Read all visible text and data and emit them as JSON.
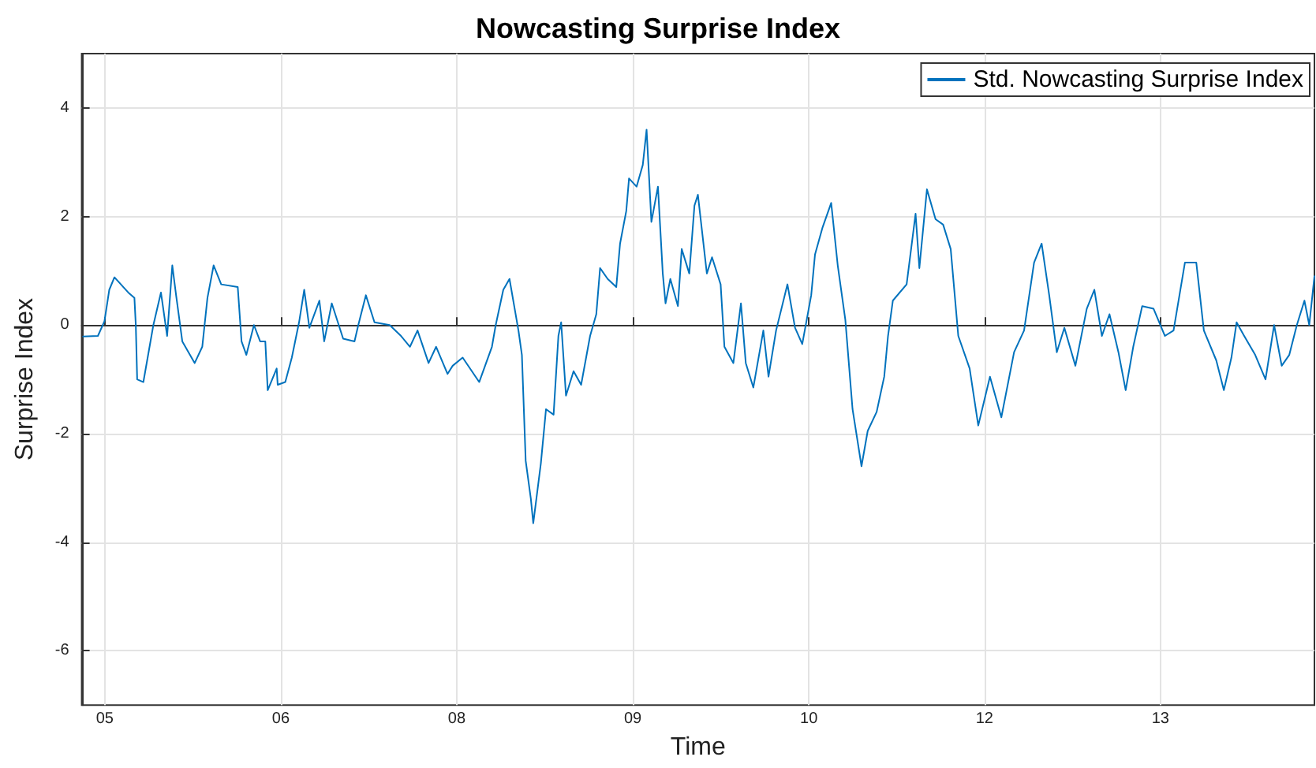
{
  "chart_data": {
    "type": "line",
    "title": "Nowcasting Surprise Index",
    "xlabel": "Time",
    "ylabel": "Surprise Index",
    "xlim": [
      "2005-01-12",
      "2014-10-31"
    ],
    "ylim": [
      -7,
      5
    ],
    "xticks": [
      {
        "value": "2005-03-20",
        "label": "05"
      },
      {
        "value": "2006-08-13",
        "label": "06"
      },
      {
        "value": "2008-01-06",
        "label": "08"
      },
      {
        "value": "2009-05-31",
        "label": "09"
      },
      {
        "value": "2010-10-24",
        "label": "10"
      },
      {
        "value": "2012-03-17",
        "label": "12"
      },
      {
        "value": "2013-08-10",
        "label": "13"
      }
    ],
    "yticks": [
      -6,
      -4,
      -2,
      0,
      2,
      4
    ],
    "grid": true,
    "legend": "top right",
    "line_style": "solid",
    "series": [
      {
        "name": "Std. Nowcasting Surprise Index",
        "color": "#0072bd",
        "x": [
          "2005-01-16",
          "2005-02-28",
          "2005-03-19",
          "2005-04-02",
          "2005-04-17",
          "2005-05-27",
          "2005-06-14",
          "2005-06-18",
          "2005-06-22",
          "2005-07-10",
          "2005-08-08",
          "2005-08-30",
          "2005-09-17",
          "2005-10-02",
          "2005-10-13",
          "2005-10-31",
          "2005-12-06",
          "2005-12-28",
          "2006-01-12",
          "2006-01-30",
          "2006-02-21",
          "2006-04-10",
          "2006-04-21",
          "2006-05-05",
          "2006-05-27",
          "2006-06-14",
          "2006-06-29",
          "2006-07-06",
          "2006-08-01",
          "2006-08-04",
          "2006-08-26",
          "2006-09-14",
          "2006-10-05",
          "2006-10-20",
          "2006-11-04",
          "2006-12-03",
          "2006-12-17",
          "2007-01-08",
          "2007-02-10",
          "2007-03-15",
          "2007-03-26",
          "2007-04-17",
          "2007-05-12",
          "2007-06-25",
          "2007-07-28",
          "2007-08-23",
          "2007-09-14",
          "2007-10-16",
          "2007-11-07",
          "2007-12-10",
          "2007-12-25",
          "2008-01-23",
          "2008-03-11",
          "2008-04-17",
          "2008-04-28",
          "2008-05-20",
          "2008-06-07",
          "2008-07-03",
          "2008-07-13",
          "2008-07-24",
          "2008-08-08",
          "2008-08-15",
          "2008-09-06",
          "2008-09-21",
          "2008-10-13",
          "2008-10-27",
          "2008-11-04",
          "2008-11-18",
          "2008-12-10",
          "2009-01-01",
          "2009-01-27",
          "2009-02-14",
          "2009-02-25",
          "2009-03-19",
          "2009-04-13",
          "2009-04-24",
          "2009-05-12",
          "2009-05-20",
          "2009-06-11",
          "2009-06-29",
          "2009-07-10",
          "2009-07-24",
          "2009-08-12",
          "2009-08-26",
          "2009-09-03",
          "2009-09-17",
          "2009-10-09",
          "2009-10-20",
          "2009-11-11",
          "2009-11-26",
          "2009-12-06",
          "2010-01-01",
          "2010-01-16",
          "2010-02-10",
          "2010-02-21",
          "2010-03-19",
          "2010-04-10",
          "2010-04-24",
          "2010-05-16",
          "2010-06-14",
          "2010-06-29",
          "2010-07-21",
          "2010-08-23",
          "2010-09-14",
          "2010-10-05",
          "2010-10-31",
          "2010-11-11",
          "2010-12-03",
          "2010-12-28",
          "2011-01-16",
          "2011-02-07",
          "2011-02-28",
          "2011-03-26",
          "2011-04-13",
          "2011-05-09",
          "2011-05-31",
          "2011-06-11",
          "2011-06-25",
          "2011-08-04",
          "2011-08-30",
          "2011-09-10",
          "2011-10-02",
          "2011-10-27",
          "2011-11-18",
          "2011-12-10",
          "2012-01-01",
          "2012-02-03",
          "2012-02-28",
          "2012-04-02",
          "2012-05-05",
          "2012-06-11",
          "2012-07-10",
          "2012-08-08",
          "2012-08-30",
          "2012-09-21",
          "2012-10-13",
          "2012-11-04",
          "2012-12-06",
          "2013-01-08",
          "2013-01-30",
          "2013-02-21",
          "2013-03-15",
          "2013-04-10",
          "2013-05-01",
          "2013-05-23",
          "2013-06-18",
          "2013-07-21",
          "2013-08-23",
          "2013-09-17",
          "2013-10-20",
          "2013-11-22",
          "2013-12-14",
          "2014-01-19",
          "2014-02-10",
          "2014-03-04",
          "2014-03-19",
          "2014-04-10",
          "2014-05-12",
          "2014-06-11",
          "2014-07-06",
          "2014-07-28",
          "2014-08-19",
          "2014-09-10",
          "2014-10-02",
          "2014-10-16",
          "2014-10-31"
        ],
        "values": [
          -0.21,
          -0.2,
          0.07,
          0.65,
          0.88,
          0.6,
          0.5,
          0.0,
          -1.0,
          -1.05,
          0.0,
          0.6,
          -0.2,
          1.1,
          0.55,
          -0.3,
          -0.7,
          -0.4,
          0.5,
          1.1,
          0.75,
          0.7,
          -0.3,
          -0.55,
          0.0,
          -0.3,
          -0.3,
          -1.2,
          -0.8,
          -1.1,
          -1.05,
          -0.6,
          0.05,
          0.65,
          -0.05,
          0.45,
          -0.3,
          0.4,
          -0.25,
          -0.3,
          0.0,
          0.55,
          0.05,
          0.0,
          -0.2,
          -0.4,
          -0.1,
          -0.7,
          -0.4,
          -0.9,
          -0.75,
          -0.6,
          -1.05,
          -0.4,
          0.0,
          0.65,
          0.85,
          -0.1,
          -0.55,
          -2.5,
          -3.2,
          -3.65,
          -2.55,
          -1.55,
          -1.65,
          -0.2,
          0.05,
          -1.3,
          -0.85,
          -1.1,
          -0.2,
          0.2,
          1.05,
          0.85,
          0.7,
          1.5,
          2.1,
          2.7,
          2.55,
          2.95,
          3.6,
          1.9,
          2.55,
          0.95,
          0.4,
          0.85,
          0.35,
          1.4,
          0.95,
          2.2,
          2.4,
          0.95,
          1.25,
          0.75,
          -0.4,
          -0.7,
          0.4,
          -0.7,
          -1.15,
          -0.1,
          -0.95,
          -0.1,
          0.75,
          -0.05,
          -0.35,
          0.55,
          1.3,
          1.8,
          2.25,
          1.1,
          0.1,
          -1.55,
          -2.6,
          -1.95,
          -1.6,
          -0.95,
          -0.2,
          0.45,
          0.75,
          2.05,
          1.05,
          2.5,
          1.95,
          1.85,
          1.4,
          -0.2,
          -0.8,
          -1.85,
          -0.95,
          -1.7,
          -0.5,
          -0.1,
          1.15,
          1.5,
          0.55,
          -0.5,
          -0.05,
          -0.75,
          0.3,
          0.65,
          -0.2,
          0.2,
          -0.5,
          -1.2,
          -0.4,
          0.35,
          0.3,
          -0.2,
          -0.1,
          1.15,
          1.15,
          -0.1,
          -0.65,
          -1.2,
          -0.6,
          0.05,
          -0.2,
          -0.55,
          -1.0,
          0.0,
          -0.75,
          -0.55,
          0.0,
          0.45,
          0.0,
          0.9
        ]
      }
    ]
  }
}
